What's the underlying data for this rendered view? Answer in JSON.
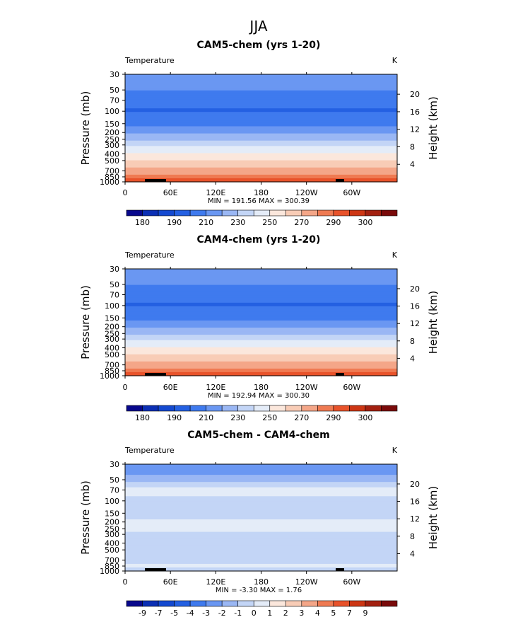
{
  "figure": {
    "title": "JJA",
    "palette_colors": [
      "#08088c",
      "#0b2fb4",
      "#1449d0",
      "#2460e2",
      "#3f7aee",
      "#6a97f2",
      "#9ab7f4",
      "#c3d5f6",
      "#e4ecf8",
      "#fbe7dc",
      "#f8ccb6",
      "#f4a688",
      "#ef7a52",
      "#e8522a",
      "#cd3614",
      "#a32010",
      "#7a0a0a"
    ]
  },
  "chart_data": [
    {
      "type": "heatmap",
      "title": "CAM5-chem (yrs 1-20)",
      "left_label": "Temperature",
      "units": "K",
      "xlabel": "",
      "ylabel": "Pressure  (mb)",
      "y2label": "Height  (km)",
      "y_ticks": [
        "30",
        "50",
        "70",
        "100",
        "150",
        "200",
        "250",
        "300",
        "400",
        "500",
        "700",
        "850",
        "1000"
      ],
      "y2_ticks": [
        "20",
        "16",
        "12",
        "8",
        "4"
      ],
      "x_ticks": [
        "0",
        "60E",
        "120E",
        "180",
        "120W",
        "60W"
      ],
      "stats": "MIN = 191.56   MAX = 300.39",
      "colorbar": {
        "labels": [
          "180",
          "190",
          "210",
          "230",
          "250",
          "270",
          "290",
          "300"
        ],
        "bins": 17
      },
      "profile": [
        {
          "p": 30,
          "T": 220
        },
        {
          "p": 50,
          "T": 211
        },
        {
          "p": 70,
          "T": 203
        },
        {
          "p": 100,
          "T": 199
        },
        {
          "p": 150,
          "T": 207
        },
        {
          "p": 200,
          "T": 218
        },
        {
          "p": 250,
          "T": 228
        },
        {
          "p": 300,
          "T": 238
        },
        {
          "p": 400,
          "T": 250
        },
        {
          "p": 500,
          "T": 260
        },
        {
          "p": 700,
          "T": 275
        },
        {
          "p": 850,
          "T": 285
        },
        {
          "p": 1000,
          "T": 297
        }
      ]
    },
    {
      "type": "heatmap",
      "title": "CAM4-chem (yrs 1-20)",
      "left_label": "Temperature",
      "units": "K",
      "xlabel": "",
      "ylabel": "Pressure  (mb)",
      "y2label": "Height  (km)",
      "y_ticks": [
        "30",
        "50",
        "70",
        "100",
        "150",
        "200",
        "250",
        "300",
        "400",
        "500",
        "700",
        "850",
        "1000"
      ],
      "y2_ticks": [
        "20",
        "16",
        "12",
        "8",
        "4"
      ],
      "x_ticks": [
        "0",
        "60E",
        "120E",
        "180",
        "120W",
        "60W"
      ],
      "stats": "MIN = 192.94   MAX = 300.30",
      "colorbar": {
        "labels": [
          "180",
          "190",
          "210",
          "230",
          "250",
          "270",
          "290",
          "300"
        ],
        "bins": 17
      },
      "profile": [
        {
          "p": 30,
          "T": 220
        },
        {
          "p": 50,
          "T": 211
        },
        {
          "p": 70,
          "T": 203
        },
        {
          "p": 100,
          "T": 199
        },
        {
          "p": 150,
          "T": 207
        },
        {
          "p": 200,
          "T": 218
        },
        {
          "p": 250,
          "T": 228
        },
        {
          "p": 300,
          "T": 238
        },
        {
          "p": 400,
          "T": 250
        },
        {
          "p": 500,
          "T": 260
        },
        {
          "p": 700,
          "T": 275
        },
        {
          "p": 850,
          "T": 285
        },
        {
          "p": 1000,
          "T": 297
        }
      ]
    },
    {
      "type": "heatmap",
      "title": "CAM5-chem - CAM4-chem",
      "left_label": "Temperature",
      "units": "K",
      "xlabel": "",
      "ylabel": "Pressure  (mb)",
      "y2label": "Height  (km)",
      "y_ticks": [
        "30",
        "50",
        "70",
        "100",
        "150",
        "200",
        "250",
        "300",
        "400",
        "500",
        "700",
        "850",
        "1000"
      ],
      "y2_ticks": [
        "20",
        "16",
        "12",
        "8",
        "4"
      ],
      "x_ticks": [
        "0",
        "60E",
        "120E",
        "180",
        "120W",
        "60W"
      ],
      "stats": "MIN =   -3.30   MAX =    1.76",
      "colorbar": {
        "labels": [
          "-9",
          "-7",
          "-5",
          "-4",
          "-3",
          "-2",
          "-1",
          "0",
          "1",
          "2",
          "3",
          "4",
          "5",
          "7",
          "9"
        ],
        "bins": 17
      },
      "profile": [
        {
          "p": 30,
          "T": -3.0
        },
        {
          "p": 50,
          "T": -1.5
        },
        {
          "p": 70,
          "T": 0.5
        },
        {
          "p": 100,
          "T": -0.3
        },
        {
          "p": 150,
          "T": -0.6
        },
        {
          "p": 200,
          "T": 0.3
        },
        {
          "p": 250,
          "T": 0.4
        },
        {
          "p": 300,
          "T": -0.2
        },
        {
          "p": 400,
          "T": -0.3
        },
        {
          "p": 500,
          "T": -0.3
        },
        {
          "p": 700,
          "T": -0.3
        },
        {
          "p": 850,
          "T": 0.2
        },
        {
          "p": 1000,
          "T": -0.3
        }
      ]
    }
  ]
}
